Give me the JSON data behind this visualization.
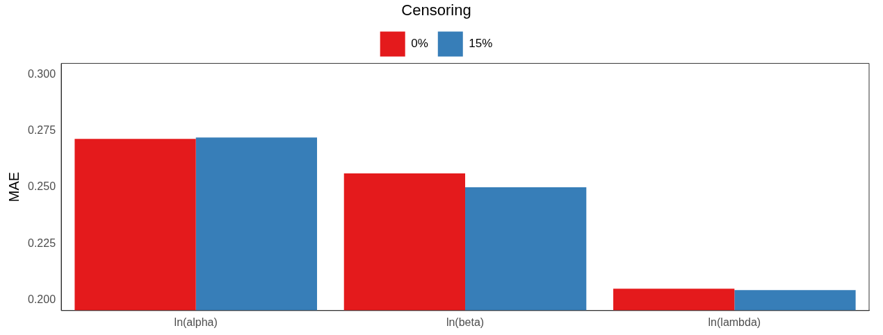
{
  "chart_data": {
    "type": "bar",
    "ylabel": "MAE",
    "legend_title": "Censoring",
    "legend": "top",
    "categories": [
      "ln(alpha)",
      "ln(beta)",
      "ln(lambda)"
    ],
    "series": [
      {
        "name": "0%",
        "color": "#e41a1c",
        "values": [
          0.2715,
          0.2562,
          0.205
        ]
      },
      {
        "name": "15%",
        "color": "#377eb8",
        "values": [
          0.2721,
          0.25,
          0.2044
        ]
      }
    ],
    "ylim": [
      0.1953,
      0.305
    ],
    "yticks": [
      {
        "value": 0.2,
        "label": "0.200"
      },
      {
        "value": 0.225,
        "label": "0.225"
      },
      {
        "value": 0.25,
        "label": "0.250"
      },
      {
        "value": 0.275,
        "label": "0.275"
      },
      {
        "value": 0.3,
        "label": "0.300"
      }
    ],
    "grid": false
  }
}
